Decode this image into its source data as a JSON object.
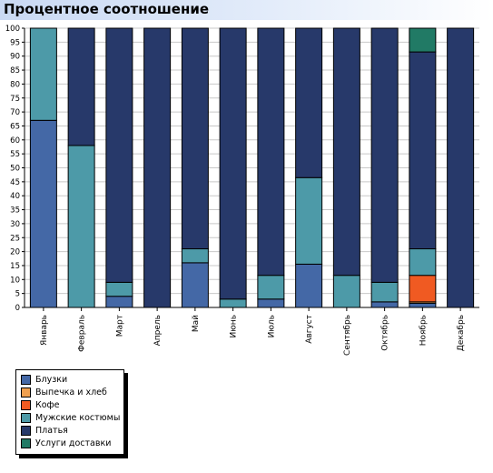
{
  "title": "Процентное соотношение",
  "chart_data": {
    "type": "bar",
    "stacked": true,
    "ylim": [
      0,
      100
    ],
    "yticks": [
      0,
      5,
      10,
      15,
      20,
      25,
      30,
      35,
      40,
      45,
      50,
      55,
      60,
      65,
      70,
      75,
      80,
      85,
      90,
      95,
      100
    ],
    "categories": [
      "Январь",
      "Февраль",
      "Март",
      "Апрель",
      "Май",
      "Июнь",
      "Июль",
      "Август",
      "Сентябрь",
      "Октябрь",
      "Ноябрь",
      "Декабрь"
    ],
    "series": [
      {
        "name": "Блузки",
        "color": "#4468a6",
        "values": [
          67,
          0,
          4,
          0,
          16,
          0,
          3,
          15.5,
          0,
          2,
          1.5,
          0
        ]
      },
      {
        "name": "Выпечка и хлеб",
        "color": "#f0a050",
        "values": [
          0,
          0,
          0,
          0,
          0,
          0,
          0,
          0,
          0,
          0,
          0.5,
          0
        ]
      },
      {
        "name": "Кофе",
        "color": "#f05a22",
        "values": [
          0,
          0,
          0,
          0,
          0,
          0,
          0,
          0,
          0,
          0,
          9.5,
          0
        ]
      },
      {
        "name": "Мужские костюмы",
        "color": "#4d9aa8",
        "values": [
          33,
          58,
          5,
          0,
          5,
          3,
          8.5,
          31,
          11.5,
          7,
          9.5,
          0
        ]
      },
      {
        "name": "Платья",
        "color": "#27396a",
        "values": [
          0,
          42,
          91,
          100,
          79,
          97,
          88.5,
          53.5,
          88.5,
          91,
          70.5,
          100
        ]
      },
      {
        "name": "Услуги доставки",
        "color": "#217a65",
        "values": [
          0,
          0,
          0,
          0,
          0,
          0,
          0,
          0,
          0,
          0,
          8.5,
          0
        ]
      }
    ],
    "legend_position": "bottom-left",
    "grid": true
  }
}
